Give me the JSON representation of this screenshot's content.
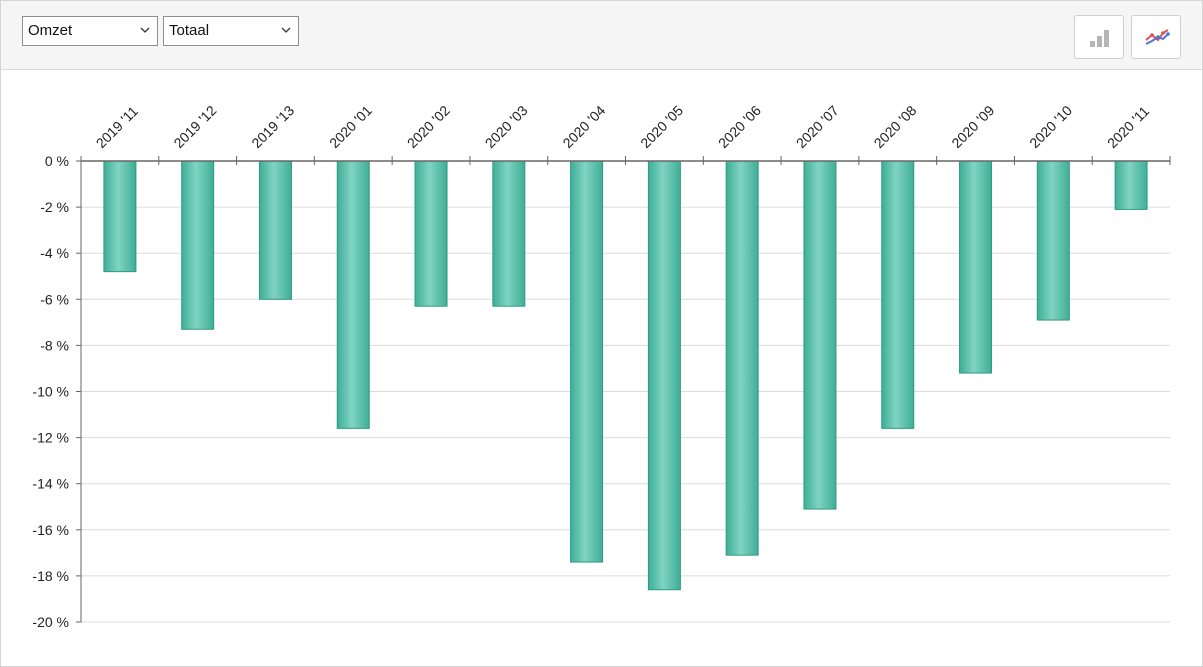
{
  "controls": {
    "metric_select": {
      "value": "Omzet",
      "icon": "chevron-down-icon"
    },
    "scope_select": {
      "value": "Totaal",
      "icon": "chevron-down-icon"
    },
    "bar_chart_button": {
      "icon": "bar-chart-icon",
      "color": "#b5b5b5"
    },
    "line_chart_button": {
      "icon": "line-chart-icon",
      "colors": [
        "#e0524c",
        "#4a74d6"
      ]
    }
  },
  "chart_data": {
    "type": "bar",
    "categories": [
      "2019 '11",
      "2019 '12",
      "2019 '13",
      "2020 '01",
      "2020 '02",
      "2020 '03",
      "2020 '04",
      "2020 '05",
      "2020 '06",
      "2020 '07",
      "2020 '08",
      "2020 '09",
      "2020 '10",
      "2020 '11"
    ],
    "series": [
      {
        "values": [
          -4.8,
          -7.3,
          -6.0,
          -11.6,
          -6.3,
          -6.3,
          -17.4,
          -18.6,
          -17.1,
          -15.1,
          -11.6,
          -9.2,
          -6.9,
          -2.1
        ],
        "color": "#4fbfa8"
      }
    ],
    "ylim": [
      -20,
      0
    ],
    "yticks": [
      0,
      -2,
      -4,
      -6,
      -8,
      -10,
      -12,
      -14,
      -16,
      -18,
      -20
    ],
    "ytick_suffix": " %",
    "x_axis_position": "top",
    "grid": true,
    "legend": "none"
  }
}
